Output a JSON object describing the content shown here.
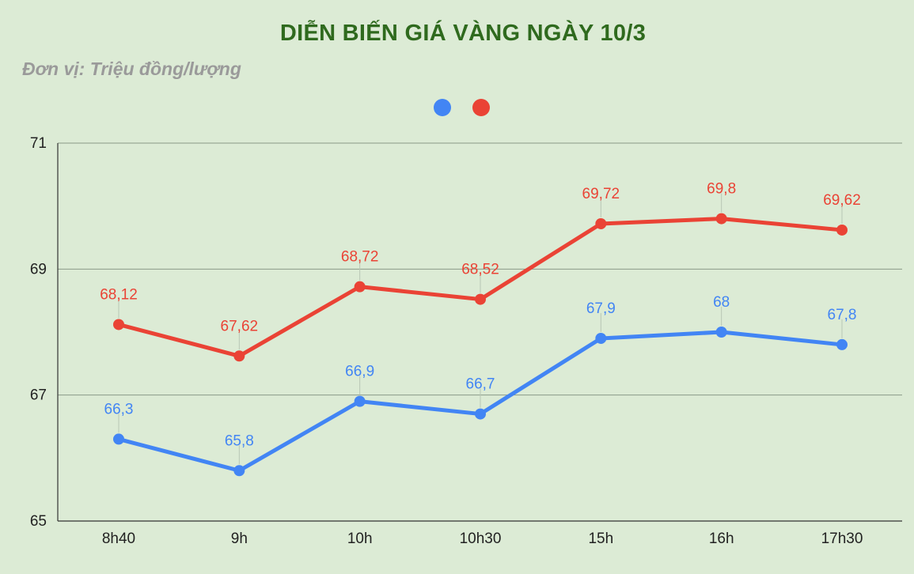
{
  "chart_data": {
    "type": "line",
    "title": "DIỄN BIẾN GIÁ VÀNG NGÀY 10/3",
    "subtitle": "Đơn vị: Triệu đồng/lượng",
    "categories": [
      "8h40",
      "9h",
      "10h",
      "10h30",
      "15h",
      "16h",
      "17h30"
    ],
    "ylim": [
      65,
      71
    ],
    "yticks": [
      65,
      67,
      69,
      71
    ],
    "grid": true,
    "legend_position": "top-center",
    "series": [
      {
        "name": "",
        "color": "#4285f4",
        "values": [
          66.3,
          65.8,
          66.9,
          66.7,
          67.9,
          68,
          67.8
        ],
        "labels": [
          "66,3",
          "65,8",
          "66,9",
          "66,7",
          "67,9",
          "68",
          "67,8"
        ]
      },
      {
        "name": "",
        "color": "#ea4335",
        "values": [
          68.12,
          67.62,
          68.72,
          68.52,
          69.72,
          69.8,
          69.62
        ],
        "labels": [
          "68,12",
          "67,62",
          "68,72",
          "68,52",
          "69,72",
          "69,8",
          "69,62"
        ]
      }
    ]
  }
}
